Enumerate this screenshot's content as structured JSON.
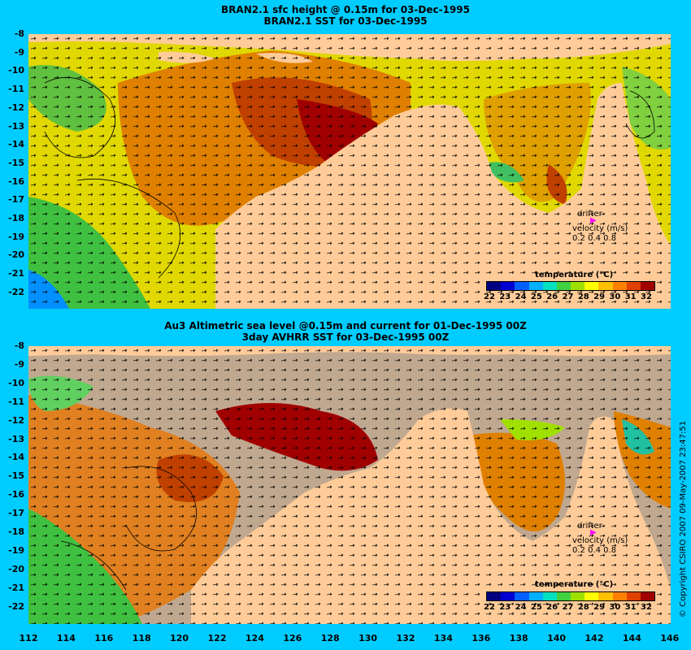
{
  "panel1": {
    "title_line1": "BRAN2.1 sfc height @ 0.15m for 03-Dec-1995",
    "title_line2": "BRAN2.1 SST for 03-Dec-1995"
  },
  "panel2": {
    "title_line1": "Au3 Altimetric sea level  @0.15m and current for 01-Dec-1995 00Z",
    "title_line2": "3day AVHRR SST for 03-Dec-1995 00Z"
  },
  "y_ticks": [
    "-8",
    "-9",
    "-10",
    "-11",
    "-12",
    "-13",
    "-14",
    "-15",
    "-16",
    "-17",
    "-18",
    "-19",
    "-20",
    "-21",
    "-22"
  ],
  "x_ticks": [
    "112",
    "114",
    "116",
    "118",
    "120",
    "122",
    "124",
    "126",
    "128",
    "130",
    "132",
    "134",
    "136",
    "138",
    "140",
    "142",
    "144",
    "146"
  ],
  "legend": {
    "drifter": "drifter",
    "velocity_label": "velocity (m/s)",
    "scale": "0.2 0.4 0.8",
    "drifter_color": "#ff00ff"
  },
  "colorbar": {
    "title": "temperature (°C)",
    "ticks": [
      "22",
      "23",
      "24",
      "25",
      "26",
      "27",
      "28",
      "29",
      "30",
      "31",
      "32"
    ],
    "colors": [
      "#000080",
      "#0000d0",
      "#0060ff",
      "#00b0ff",
      "#00e0c0",
      "#40d040",
      "#a0e000",
      "#ffff00",
      "#ffc000",
      "#ff8000",
      "#e04000",
      "#a00000"
    ]
  },
  "colors": {
    "background": "#00ccff",
    "land": "#ffcc99",
    "no_data": "#c0a890"
  },
  "copyright": "© Copyright CSIRO 2007  09-May-2007 23:47:51"
}
